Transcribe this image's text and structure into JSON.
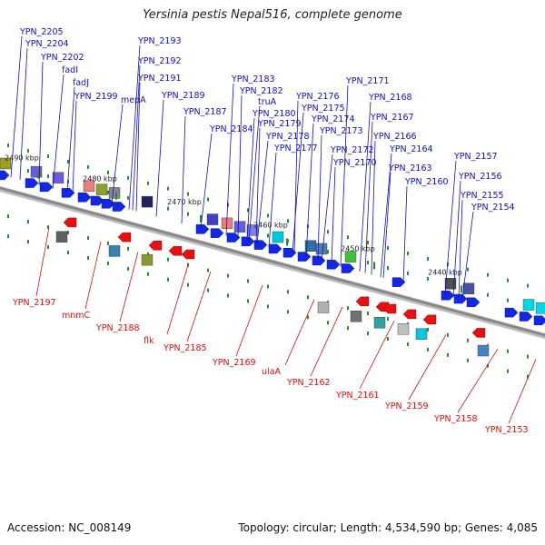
{
  "title": "Yersinia pestis Nepal516, complete genome",
  "footer": {
    "accession": "Accession: NC_008149",
    "summary": "Topology: circular; Length: 4,534,590 bp; Genes: 4,085"
  },
  "colors": {
    "forward_label": "#1010c0",
    "reverse_label": "#d01010",
    "forward_gene": "#1428e0",
    "reverse_gene": "#e81010",
    "backbone": "#888888",
    "tick": "#2a8a2a"
  },
  "scale_labels": [
    "2490 kbp",
    "2480 kbp",
    "2470 kbp",
    "2460 kbp",
    "2450 kbp",
    "2440 kbp"
  ],
  "forward_labels": [
    "YPN_2205",
    "YPN_2204",
    "YPN_2202",
    "fadI",
    "fadJ",
    "YPN_2199",
    "YPN_2193",
    "YPN_2192",
    "YPN_2191",
    "mepA",
    "YPN_2189",
    "YPN_2187",
    "YPN_2184",
    "YPN_2183",
    "YPN_2182",
    "truA",
    "YPN_2180",
    "YPN_2179",
    "YPN_2178",
    "YPN_2177",
    "YPN_2176",
    "YPN_2175",
    "YPN_2174",
    "YPN_2173",
    "YPN_2172",
    "YPN_2171",
    "YPN_2170",
    "YPN_2168",
    "YPN_2167",
    "YPN_2166",
    "YPN_2164",
    "YPN_2163",
    "YPN_2160",
    "YPN_2157",
    "YPN_2156",
    "YPN_2155",
    "YPN_2154"
  ],
  "reverse_labels": [
    "YPN_2197",
    "mnmC",
    "YPN_2188",
    "flk",
    "YPN_2185",
    "YPN_2169",
    "ulaA",
    "YPN_2162",
    "YPN_2161",
    "YPN_2159",
    "YPN_2158",
    "YPN_2153"
  ]
}
